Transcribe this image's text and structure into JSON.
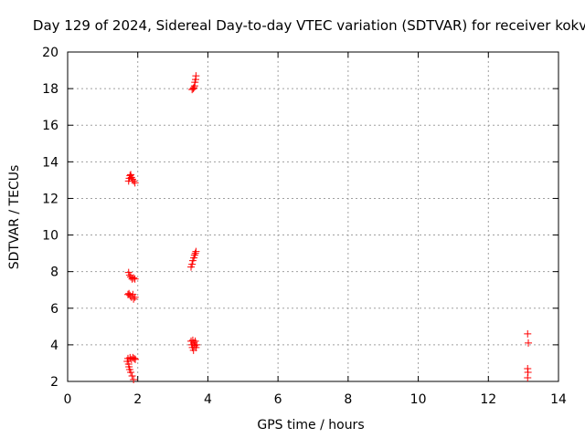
{
  "chart_data": {
    "type": "scatter",
    "title": "Day 129 of 2024, Sidereal Day-to-day VTEC variation (SDTVAR) for receiver kokv",
    "xlabel": "GPS time / hours",
    "ylabel": "SDTVAR / TECUs",
    "xlim": [
      0,
      14
    ],
    "ylim": [
      2,
      20
    ],
    "x_ticks": [
      0,
      2,
      4,
      6,
      8,
      10,
      12,
      14
    ],
    "y_ticks": [
      2,
      4,
      6,
      8,
      10,
      12,
      14,
      16,
      18,
      20
    ],
    "grid": true,
    "marker": "plus",
    "marker_color": "#ff0000",
    "points": [
      {
        "x": 3.55,
        "y": 17.95
      },
      {
        "x": 3.58,
        "y": 18.0
      },
      {
        "x": 3.6,
        "y": 18.05
      },
      {
        "x": 3.62,
        "y": 18.15
      },
      {
        "x": 3.63,
        "y": 18.35
      },
      {
        "x": 3.65,
        "y": 18.5
      },
      {
        "x": 3.66,
        "y": 18.7
      },
      {
        "x": 1.74,
        "y": 12.95
      },
      {
        "x": 1.76,
        "y": 13.1
      },
      {
        "x": 1.78,
        "y": 13.25
      },
      {
        "x": 1.8,
        "y": 13.3
      },
      {
        "x": 1.82,
        "y": 13.15
      },
      {
        "x": 1.85,
        "y": 13.05
      },
      {
        "x": 1.88,
        "y": 12.95
      },
      {
        "x": 1.92,
        "y": 12.85
      },
      {
        "x": 3.52,
        "y": 8.25
      },
      {
        "x": 3.55,
        "y": 8.4
      },
      {
        "x": 3.57,
        "y": 8.6
      },
      {
        "x": 3.6,
        "y": 8.75
      },
      {
        "x": 3.62,
        "y": 8.9
      },
      {
        "x": 3.64,
        "y": 9.0
      },
      {
        "x": 3.66,
        "y": 9.1
      },
      {
        "x": 1.74,
        "y": 7.95
      },
      {
        "x": 1.77,
        "y": 7.8
      },
      {
        "x": 1.8,
        "y": 7.7
      },
      {
        "x": 1.84,
        "y": 7.6
      },
      {
        "x": 1.88,
        "y": 7.65
      },
      {
        "x": 1.92,
        "y": 7.6
      },
      {
        "x": 1.72,
        "y": 6.75
      },
      {
        "x": 1.75,
        "y": 6.8
      },
      {
        "x": 1.78,
        "y": 6.7
      },
      {
        "x": 1.82,
        "y": 6.6
      },
      {
        "x": 1.86,
        "y": 6.75
      },
      {
        "x": 1.88,
        "y": 6.5
      },
      {
        "x": 1.92,
        "y": 6.6
      },
      {
        "x": 3.52,
        "y": 4.2
      },
      {
        "x": 3.54,
        "y": 4.0
      },
      {
        "x": 3.56,
        "y": 3.85
      },
      {
        "x": 3.57,
        "y": 4.25
      },
      {
        "x": 3.59,
        "y": 3.7
      },
      {
        "x": 3.6,
        "y": 4.1
      },
      {
        "x": 3.62,
        "y": 3.95
      },
      {
        "x": 3.64,
        "y": 4.2
      },
      {
        "x": 3.66,
        "y": 3.85
      },
      {
        "x": 3.68,
        "y": 4.0
      },
      {
        "x": 1.7,
        "y": 3.1
      },
      {
        "x": 1.72,
        "y": 3.25
      },
      {
        "x": 1.74,
        "y": 2.95
      },
      {
        "x": 1.75,
        "y": 2.8
      },
      {
        "x": 1.77,
        "y": 2.65
      },
      {
        "x": 1.78,
        "y": 3.3
      },
      {
        "x": 1.8,
        "y": 2.5
      },
      {
        "x": 1.82,
        "y": 3.2
      },
      {
        "x": 1.84,
        "y": 2.3
      },
      {
        "x": 1.86,
        "y": 3.3
      },
      {
        "x": 1.88,
        "y": 2.1
      },
      {
        "x": 1.9,
        "y": 3.25
      },
      {
        "x": 1.93,
        "y": 3.2
      },
      {
        "x": 13.12,
        "y": 4.6
      },
      {
        "x": 13.14,
        "y": 4.1
      },
      {
        "x": 13.12,
        "y": 2.7
      },
      {
        "x": 13.13,
        "y": 2.5
      },
      {
        "x": 13.12,
        "y": 2.2
      }
    ]
  }
}
